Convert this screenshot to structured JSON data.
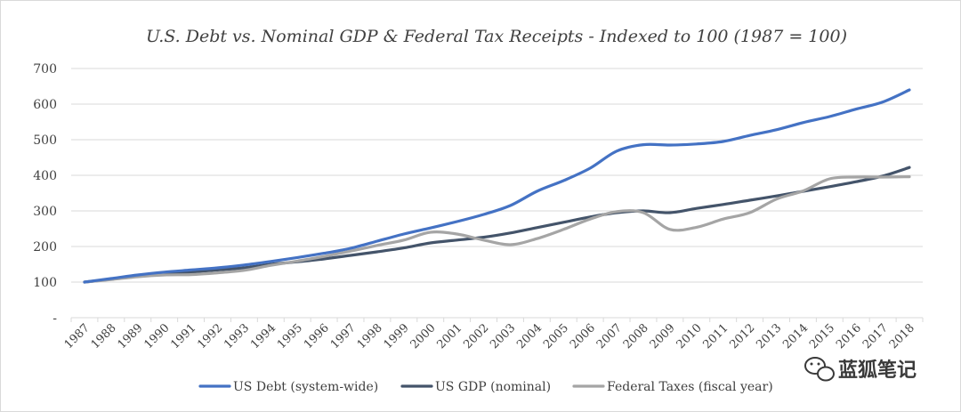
{
  "chart_data": {
    "type": "line",
    "title": "U.S. Debt vs. Nominal GDP & Federal Tax Receipts - Indexed to 100 (1987 = 100)",
    "xlabel": "",
    "ylabel": "",
    "ylim": [
      0,
      700
    ],
    "yticks": [
      "-",
      "100",
      "200",
      "300",
      "400",
      "500",
      "600",
      "700"
    ],
    "grid": true,
    "legend_position": "bottom",
    "categories": [
      "1987",
      "1988",
      "1989",
      "1990",
      "1991",
      "1992",
      "1993",
      "1994",
      "1995",
      "1996",
      "1997",
      "1998",
      "1999",
      "2000",
      "2001",
      "2002",
      "2003",
      "2004",
      "2005",
      "2006",
      "2007",
      "2008",
      "2009",
      "2010",
      "2011",
      "2012",
      "2013",
      "2014",
      "2015",
      "2016",
      "2017",
      "2018"
    ],
    "series": [
      {
        "name": "US Debt (system-wide)",
        "color": "#4472c4",
        "values": [
          100,
          110,
          120,
          128,
          134,
          140,
          148,
          158,
          169,
          181,
          195,
          215,
          235,
          252,
          270,
          290,
          315,
          355,
          385,
          420,
          468,
          486,
          485,
          488,
          495,
          512,
          528,
          548,
          565,
          586,
          606,
          640
        ]
      },
      {
        "name": "US GDP (nominal)",
        "color": "#44546a",
        "values": [
          100,
          108,
          117,
          124,
          128,
          134,
          140,
          150,
          157,
          165,
          175,
          185,
          196,
          210,
          218,
          226,
          238,
          253,
          268,
          283,
          295,
          300,
          295,
          307,
          318,
          330,
          342,
          355,
          368,
          382,
          398,
          422
        ]
      },
      {
        "name": "Federal Taxes (fiscal year)",
        "color": "#a5a5a5",
        "values": [
          100,
          107,
          115,
          120,
          121,
          126,
          133,
          147,
          159,
          172,
          187,
          203,
          218,
          240,
          235,
          218,
          205,
          222,
          248,
          277,
          298,
          295,
          248,
          254,
          277,
          295,
          333,
          356,
          390,
          395,
          395,
          396
        ]
      }
    ]
  },
  "watermark": {
    "text": "蓝狐笔记",
    "icon": "wechat-icon"
  }
}
